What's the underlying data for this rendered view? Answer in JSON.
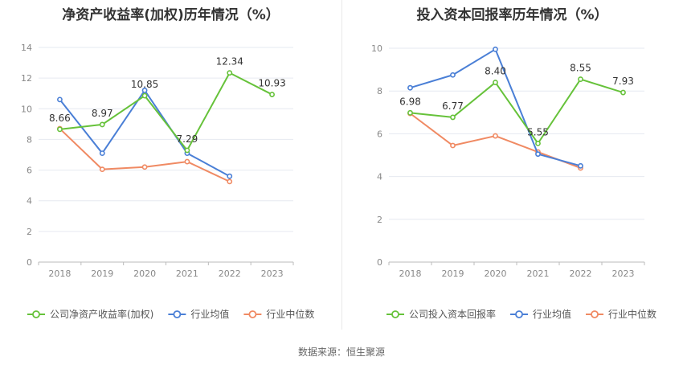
{
  "colors": {
    "company": "#66c23a",
    "industry_avg": "#4a7fd6",
    "industry_median": "#f08a63",
    "grid": "#e6e9f0",
    "axis": "#888888"
  },
  "chart_data": [
    {
      "type": "line",
      "title": "净资产收益率(加权)历年情况（%）",
      "categories": [
        "2018",
        "2019",
        "2020",
        "2021",
        "2022",
        "2023"
      ],
      "ylim": [
        0,
        14
      ],
      "yticks": [
        0,
        2,
        4,
        6,
        8,
        10,
        12,
        14
      ],
      "grid": true,
      "legend_position": "bottom-left",
      "series": [
        {
          "name": "公司净资产收益率(加权)",
          "key": "company",
          "values": [
            8.66,
            8.97,
            10.85,
            7.29,
            12.34,
            10.93
          ],
          "labels": [
            "8.66",
            "8.97",
            "10.85",
            "7.29",
            "12.34",
            "10.93"
          ]
        },
        {
          "name": "行业均值",
          "key": "industry_avg",
          "values": [
            10.6,
            7.1,
            11.2,
            7.1,
            5.6,
            null
          ]
        },
        {
          "name": "行业中位数",
          "key": "industry_median",
          "values": [
            8.7,
            6.05,
            6.2,
            6.55,
            5.25,
            null
          ]
        }
      ]
    },
    {
      "type": "line",
      "title": "投入资本回报率历年情况（%）",
      "categories": [
        "2018",
        "2019",
        "2020",
        "2021",
        "2022",
        "2023"
      ],
      "ylim": [
        0,
        10
      ],
      "yticks": [
        0,
        2,
        4,
        6,
        8,
        10
      ],
      "grid": true,
      "legend_position": "bottom-left",
      "series": [
        {
          "name": "公司投入资本回报率",
          "key": "company",
          "values": [
            6.98,
            6.77,
            8.4,
            5.55,
            8.55,
            7.93
          ],
          "labels": [
            "6.98",
            "6.77",
            "8.40",
            "5.55",
            "8.55",
            "7.93"
          ]
        },
        {
          "name": "行业均值",
          "key": "industry_avg",
          "values": [
            8.15,
            8.75,
            9.95,
            5.05,
            4.5,
            null
          ]
        },
        {
          "name": "行业中位数",
          "key": "industry_median",
          "values": [
            6.95,
            5.45,
            5.9,
            5.15,
            4.4,
            null
          ]
        }
      ]
    }
  ],
  "footer": {
    "source_text": "数据来源：恒生聚源"
  }
}
